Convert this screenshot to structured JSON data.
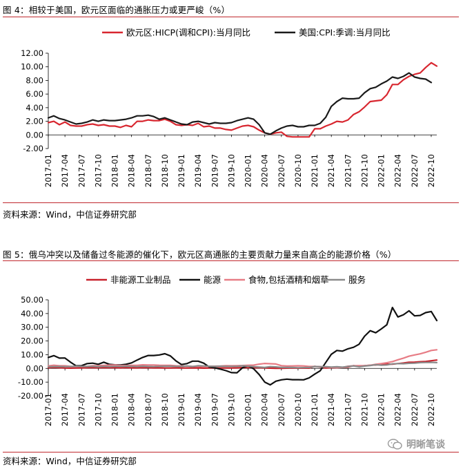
{
  "figures": [
    {
      "title": "图 4：相较于美国，欧元区面临的通胀压力或更严峻（%）",
      "source": "资料来源：Wind，中信证券研究部"
    },
    {
      "title": "图 5：俄乌冲突以及储备过冬能源的催化下，欧元区高通胀的主要贡献力量来自高企的能源价格（%）",
      "source": "资料来源：Wind，中信证券研究部"
    }
  ],
  "watermark": {
    "text": "明晰笔谈"
  },
  "chart_data": [
    {
      "type": "line",
      "title": "",
      "xlabel": "",
      "ylabel": "",
      "ylim": [
        -2,
        12
      ],
      "yticks": [
        "12.00",
        "10.00",
        "8.00",
        "6.00",
        "4.00",
        "2.00",
        "0.00",
        "-2.00"
      ],
      "ytick_values": [
        12,
        10,
        8,
        6,
        4,
        2,
        0,
        -2
      ],
      "x_tick_labels": [
        "2017-01",
        "2017-04",
        "2017-07",
        "2017-10",
        "2018-01",
        "2018-04",
        "2018-07",
        "2018-10",
        "2019-01",
        "2019-04",
        "2019-07",
        "2019-10",
        "2020-01",
        "2020-04",
        "2020-07",
        "2020-10",
        "2021-01",
        "2021-04",
        "2021-07",
        "2021-10",
        "2022-01",
        "2022-04",
        "2022-07",
        "2022-10"
      ],
      "x_tick_index": [
        0,
        3,
        6,
        9,
        12,
        15,
        18,
        21,
        24,
        27,
        30,
        33,
        36,
        39,
        42,
        45,
        48,
        51,
        54,
        57,
        60,
        63,
        66,
        69
      ],
      "n_points": 71,
      "legend_position": "top",
      "grid": false,
      "series": [
        {
          "name": "欧元区:HICP(调和CPI):当月同比",
          "color": "#d8262f",
          "values": [
            1.8,
            2.0,
            1.5,
            1.9,
            1.4,
            1.3,
            1.3,
            1.5,
            1.6,
            1.4,
            1.5,
            1.3,
            1.3,
            1.1,
            1.4,
            1.2,
            2.0,
            2.0,
            2.2,
            2.1,
            2.1,
            2.3,
            2.0,
            1.5,
            1.4,
            1.5,
            1.4,
            1.7,
            1.2,
            1.3,
            1.0,
            1.0,
            0.8,
            0.7,
            1.0,
            1.3,
            1.4,
            1.2,
            0.7,
            0.3,
            0.1,
            0.3,
            0.4,
            -0.2,
            -0.3,
            -0.3,
            -0.3,
            -0.3,
            0.9,
            0.9,
            1.3,
            1.6,
            2.0,
            1.9,
            2.2,
            3.0,
            3.4,
            4.1,
            4.9,
            5.0,
            5.1,
            5.9,
            7.4,
            7.4,
            8.1,
            8.6,
            8.9,
            9.1,
            9.9,
            10.6,
            10.1
          ]
        },
        {
          "name": "美国:CPI:季调:当月同比",
          "color": "#1a1a1a",
          "values": [
            2.5,
            2.8,
            2.4,
            2.2,
            1.9,
            1.6,
            1.7,
            1.9,
            2.2,
            2.0,
            2.2,
            2.1,
            2.1,
            2.2,
            2.3,
            2.5,
            2.8,
            2.8,
            2.9,
            2.7,
            2.3,
            2.5,
            2.2,
            1.9,
            1.6,
            1.5,
            1.9,
            2.0,
            1.8,
            1.6,
            1.8,
            1.7,
            1.7,
            1.8,
            2.1,
            2.3,
            2.5,
            2.3,
            1.5,
            0.3,
            0.1,
            0.6,
            1.0,
            1.3,
            1.4,
            1.2,
            1.2,
            1.4,
            1.4,
            1.7,
            2.6,
            4.2,
            4.9,
            5.4,
            5.3,
            5.3,
            5.4,
            6.2,
            6.8,
            7.0,
            7.5,
            7.9,
            8.5,
            8.3,
            8.6,
            9.1,
            8.5,
            8.3,
            8.2,
            7.7
          ]
        }
      ]
    },
    {
      "type": "line",
      "title": "",
      "xlabel": "",
      "ylabel": "",
      "ylim": [
        -20,
        50
      ],
      "yticks": [
        "50.00",
        "40.00",
        "30.00",
        "20.00",
        "10.00",
        "0.00",
        "-10.00",
        "-20.00"
      ],
      "ytick_values": [
        50,
        40,
        30,
        20,
        10,
        0,
        -10,
        -20
      ],
      "x_tick_labels": [
        "2017-01",
        "2017-04",
        "2017-07",
        "2017-10",
        "2018-01",
        "2018-04",
        "2018-07",
        "2018-10",
        "2019-01",
        "2019-04",
        "2019-07",
        "2019-10",
        "2020-01",
        "2020-04",
        "2020-07",
        "2020-10",
        "2021-01",
        "2021-04",
        "2021-07",
        "2021-10",
        "2022-01",
        "2022-04",
        "2022-07",
        "2022-10"
      ],
      "x_tick_index": [
        0,
        3,
        6,
        9,
        12,
        15,
        18,
        21,
        24,
        27,
        30,
        33,
        36,
        39,
        42,
        45,
        48,
        51,
        54,
        57,
        60,
        63,
        66,
        69
      ],
      "n_points": 71,
      "legend_position": "top",
      "grid": false,
      "series": [
        {
          "name": "非能源工业制品",
          "color": "#c8202a",
          "values": [
            0.5,
            0.7,
            0.5,
            0.3,
            0.2,
            0.3,
            0.4,
            0.5,
            0.5,
            0.5,
            0.5,
            0.5,
            0.6,
            0.4,
            0.6,
            0.4,
            0.4,
            0.5,
            0.5,
            0.4,
            0.4,
            0.3,
            0.3,
            0.4,
            0.3,
            0.3,
            0.3,
            0.4,
            0.2,
            0.3,
            0.3,
            0.3,
            0.3,
            0.3,
            0.4,
            0.6,
            0.5,
            0.5,
            0.5,
            0.3,
            0.2,
            0.1,
            0.1,
            0.2,
            0.3,
            0.2,
            0.2,
            0.2,
            1.5,
            1.0,
            0.3,
            0.5,
            0.7,
            0.7,
            1.0,
            2.0,
            1.5,
            2.0,
            2.3,
            2.5,
            2.9,
            3.1,
            3.1,
            3.5,
            3.9,
            4.5,
            4.6,
            4.9,
            5.1,
            5.6,
            6.1
          ]
        },
        {
          "name": "能源",
          "color": "#111111",
          "values": [
            8.0,
            9.3,
            7.5,
            7.6,
            4.5,
            1.9,
            2.0,
            3.5,
            3.8,
            3.0,
            4.5,
            3.0,
            2.6,
            2.5,
            3.0,
            4.0,
            6.1,
            8.0,
            9.4,
            9.4,
            9.8,
            10.7,
            9.1,
            5.5,
            2.8,
            3.5,
            5.3,
            5.3,
            3.8,
            1.0,
            0.4,
            -0.5,
            -1.6,
            -3.1,
            -3.2,
            0.5,
            1.9,
            -0.3,
            -4.5,
            -10.0,
            -12.0,
            -9.3,
            -8.3,
            -7.8,
            -8.2,
            -8.2,
            -8.3,
            -6.9,
            -4.2,
            -1.7,
            4.3,
            10.3,
            13.1,
            12.6,
            14.3,
            15.4,
            17.6,
            23.5,
            27.5,
            26.0,
            28.8,
            31.8,
            44.4,
            37.5,
            39.1,
            42.0,
            38.3,
            38.6,
            40.7,
            41.5,
            34.9
          ]
        },
        {
          "name": "食物,包括酒精和烟草",
          "color": "#e77c85",
          "values": [
            1.8,
            2.3,
            1.9,
            1.9,
            1.5,
            1.3,
            1.4,
            1.4,
            1.9,
            2.0,
            2.2,
            2.4,
            2.5,
            2.1,
            2.1,
            2.2,
            2.2,
            2.6,
            2.5,
            2.5,
            2.3,
            2.2,
            2.2,
            1.9,
            1.8,
            1.6,
            1.5,
            1.5,
            1.4,
            1.6,
            1.6,
            1.7,
            2.0,
            1.9,
            2.0,
            2.1,
            2.3,
            2.4,
            3.1,
            3.6,
            3.4,
            3.2,
            2.0,
            1.7,
            1.8,
            1.9,
            1.8,
            1.4,
            1.4,
            1.3,
            1.1,
            0.7,
            0.5,
            0.7,
            1.6,
            1.9,
            2.0,
            2.0,
            2.3,
            3.0,
            3.5,
            4.1,
            5.0,
            6.3,
            7.5,
            8.9,
            9.8,
            10.6,
            11.8,
            13.1,
            13.6
          ]
        },
        {
          "name": "服务",
          "color": "#8a8a8a",
          "values": [
            1.2,
            1.3,
            1.4,
            1.3,
            1.4,
            1.6,
            1.4,
            1.4,
            1.5,
            1.2,
            1.5,
            1.3,
            1.5,
            1.5,
            1.6,
            1.5,
            1.3,
            1.6,
            1.4,
            1.3,
            1.5,
            1.6,
            1.6,
            1.5,
            1.4,
            1.8,
            1.3,
            2.0,
            1.8,
            1.6,
            1.5,
            1.6,
            1.5,
            1.5,
            1.5,
            1.9,
            1.6,
            1.3,
            1.0,
            0.7,
            1.3,
            1.1,
            0.7,
            0.7,
            0.7,
            0.5,
            0.6,
            0.7,
            1.4,
            1.2,
            1.3,
            1.0,
            1.2,
            0.9,
            1.4,
            1.8,
            1.1,
            1.7,
            2.1,
            2.7,
            2.3,
            2.5,
            3.3,
            3.5,
            3.4,
            3.7,
            3.8,
            4.2,
            4.3,
            4.4,
            4.2
          ]
        }
      ]
    }
  ]
}
